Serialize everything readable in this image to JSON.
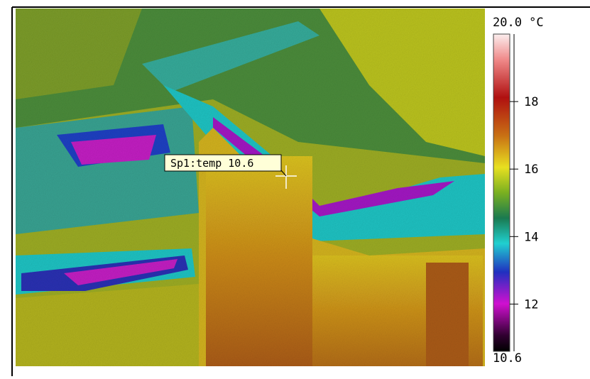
{
  "scale": {
    "max": {
      "value": 20.0,
      "label": "20.0 °C"
    },
    "min": 10.6,
    "ticks": [
      18,
      16,
      14,
      12
    ]
  },
  "spot": {
    "label": "Sp1:temp 10.6"
  }
}
